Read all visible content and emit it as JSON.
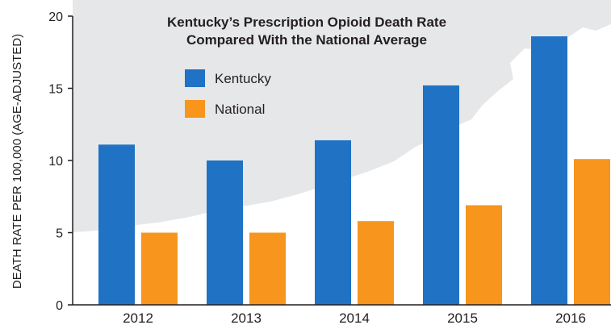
{
  "chart_data": {
    "type": "bar",
    "title_line1": "Kentucky’s Prescription Opioid Death Rate",
    "title_line2": "Compared With the National Average",
    "ylabel": "DEATH RATE PER 100,000 (AGE-ADJUSTED)",
    "xlabel": "",
    "categories": [
      "2012",
      "2013",
      "2014",
      "2015",
      "2016"
    ],
    "series": [
      {
        "name": "Kentucky",
        "color": "#1f72c4",
        "values": [
          11.1,
          10.0,
          11.4,
          15.2,
          18.6
        ]
      },
      {
        "name": "National",
        "color": "#f7951d",
        "values": [
          5.0,
          5.0,
          5.8,
          6.9,
          10.1
        ]
      }
    ],
    "yticks": [
      0,
      5,
      10,
      15,
      20
    ],
    "ylim": [
      0,
      20
    ],
    "grid": false,
    "legend_position": "top-left"
  },
  "colors": {
    "background_shape": "#e6e7e8",
    "axis": "#231f20",
    "text": "#231f20"
  }
}
